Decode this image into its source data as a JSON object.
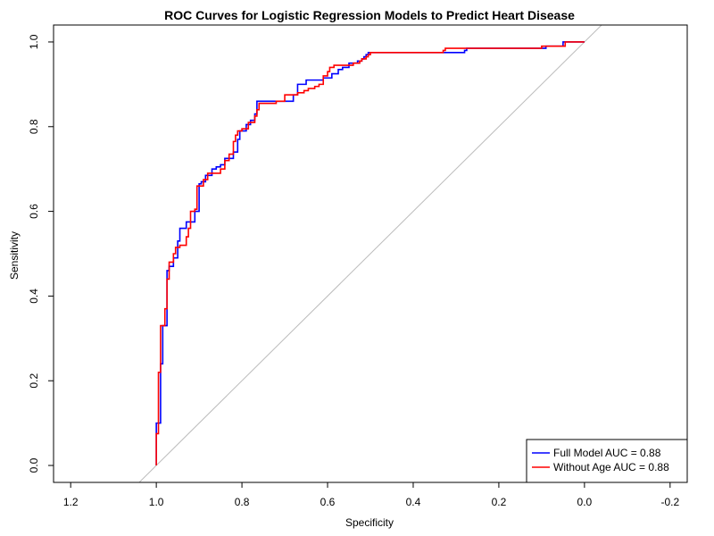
{
  "chart_data": {
    "type": "line",
    "title": "ROC Curves for Logistic Regression Models to Predict Heart Disease",
    "xlabel": "Specificity",
    "ylabel": "Sensitivity",
    "xlim": [
      1.24,
      -0.24
    ],
    "ylim": [
      -0.04,
      1.04
    ],
    "x_reversed": true,
    "x_ticks": [
      1.2,
      1.0,
      0.8,
      0.6,
      0.4,
      0.2,
      0.0,
      -0.2
    ],
    "x_tick_labels": [
      "1.2",
      "1.0",
      "0.8",
      "0.6",
      "0.4",
      "0.2",
      "0.0",
      "-0.2"
    ],
    "y_ticks": [
      0.0,
      0.2,
      0.4,
      0.6,
      0.8,
      1.0
    ],
    "y_tick_labels": [
      "0.0",
      "0.2",
      "0.4",
      "0.6",
      "0.8",
      "1.0"
    ],
    "grid": false,
    "legend_position": "bottom-right",
    "reference_line": {
      "from": [
        1,
        0
      ],
      "to": [
        0,
        1
      ],
      "color": "#bbbbbb"
    },
    "series": [
      {
        "name": "Full Model AUC = 0.88",
        "color": "#0000ff",
        "points": [
          [
            1.0,
            0.0
          ],
          [
            1.0,
            0.1
          ],
          [
            0.99,
            0.1
          ],
          [
            0.99,
            0.24
          ],
          [
            0.985,
            0.24
          ],
          [
            0.985,
            0.33
          ],
          [
            0.975,
            0.33
          ],
          [
            0.975,
            0.46
          ],
          [
            0.97,
            0.46
          ],
          [
            0.97,
            0.47
          ],
          [
            0.96,
            0.47
          ],
          [
            0.96,
            0.49
          ],
          [
            0.95,
            0.49
          ],
          [
            0.95,
            0.53
          ],
          [
            0.945,
            0.53
          ],
          [
            0.945,
            0.56
          ],
          [
            0.93,
            0.56
          ],
          [
            0.93,
            0.575
          ],
          [
            0.91,
            0.575
          ],
          [
            0.91,
            0.6
          ],
          [
            0.9,
            0.6
          ],
          [
            0.9,
            0.665
          ],
          [
            0.895,
            0.665
          ],
          [
            0.895,
            0.67
          ],
          [
            0.885,
            0.67
          ],
          [
            0.885,
            0.685
          ],
          [
            0.87,
            0.685
          ],
          [
            0.87,
            0.7
          ],
          [
            0.86,
            0.7
          ],
          [
            0.86,
            0.705
          ],
          [
            0.85,
            0.705
          ],
          [
            0.85,
            0.71
          ],
          [
            0.84,
            0.71
          ],
          [
            0.84,
            0.725
          ],
          [
            0.82,
            0.725
          ],
          [
            0.82,
            0.74
          ],
          [
            0.81,
            0.74
          ],
          [
            0.81,
            0.77
          ],
          [
            0.805,
            0.77
          ],
          [
            0.805,
            0.79
          ],
          [
            0.79,
            0.79
          ],
          [
            0.79,
            0.805
          ],
          [
            0.78,
            0.805
          ],
          [
            0.78,
            0.815
          ],
          [
            0.77,
            0.815
          ],
          [
            0.77,
            0.83
          ],
          [
            0.765,
            0.83
          ],
          [
            0.765,
            0.86
          ],
          [
            0.68,
            0.86
          ],
          [
            0.68,
            0.875
          ],
          [
            0.67,
            0.875
          ],
          [
            0.67,
            0.9
          ],
          [
            0.65,
            0.9
          ],
          [
            0.65,
            0.91
          ],
          [
            0.61,
            0.91
          ],
          [
            0.61,
            0.915
          ],
          [
            0.59,
            0.915
          ],
          [
            0.59,
            0.925
          ],
          [
            0.575,
            0.925
          ],
          [
            0.575,
            0.935
          ],
          [
            0.565,
            0.935
          ],
          [
            0.565,
            0.94
          ],
          [
            0.55,
            0.94
          ],
          [
            0.55,
            0.95
          ],
          [
            0.53,
            0.95
          ],
          [
            0.53,
            0.955
          ],
          [
            0.52,
            0.955
          ],
          [
            0.52,
            0.96
          ],
          [
            0.515,
            0.96
          ],
          [
            0.515,
            0.965
          ],
          [
            0.51,
            0.965
          ],
          [
            0.51,
            0.97
          ],
          [
            0.505,
            0.97
          ],
          [
            0.505,
            0.975
          ],
          [
            0.28,
            0.975
          ],
          [
            0.28,
            0.98
          ],
          [
            0.275,
            0.98
          ],
          [
            0.275,
            0.985
          ],
          [
            0.09,
            0.985
          ],
          [
            0.09,
            0.99
          ],
          [
            0.05,
            0.99
          ],
          [
            0.05,
            1.0
          ],
          [
            0.0,
            1.0
          ]
        ]
      },
      {
        "name": "Without Age AUC = 0.88",
        "color": "#ff0000",
        "points": [
          [
            1.0,
            0.0
          ],
          [
            1.0,
            0.075
          ],
          [
            0.995,
            0.075
          ],
          [
            0.995,
            0.22
          ],
          [
            0.99,
            0.22
          ],
          [
            0.99,
            0.33
          ],
          [
            0.98,
            0.33
          ],
          [
            0.98,
            0.37
          ],
          [
            0.975,
            0.37
          ],
          [
            0.975,
            0.44
          ],
          [
            0.97,
            0.44
          ],
          [
            0.97,
            0.48
          ],
          [
            0.96,
            0.48
          ],
          [
            0.96,
            0.5
          ],
          [
            0.955,
            0.5
          ],
          [
            0.955,
            0.515
          ],
          [
            0.945,
            0.515
          ],
          [
            0.945,
            0.52
          ],
          [
            0.93,
            0.52
          ],
          [
            0.93,
            0.54
          ],
          [
            0.925,
            0.54
          ],
          [
            0.925,
            0.56
          ],
          [
            0.92,
            0.56
          ],
          [
            0.92,
            0.6
          ],
          [
            0.91,
            0.6
          ],
          [
            0.91,
            0.605
          ],
          [
            0.905,
            0.605
          ],
          [
            0.905,
            0.66
          ],
          [
            0.89,
            0.66
          ],
          [
            0.89,
            0.675
          ],
          [
            0.88,
            0.675
          ],
          [
            0.88,
            0.69
          ],
          [
            0.85,
            0.69
          ],
          [
            0.85,
            0.7
          ],
          [
            0.84,
            0.7
          ],
          [
            0.84,
            0.72
          ],
          [
            0.83,
            0.72
          ],
          [
            0.83,
            0.735
          ],
          [
            0.82,
            0.735
          ],
          [
            0.82,
            0.765
          ],
          [
            0.815,
            0.765
          ],
          [
            0.815,
            0.78
          ],
          [
            0.81,
            0.78
          ],
          [
            0.81,
            0.79
          ],
          [
            0.8,
            0.79
          ],
          [
            0.8,
            0.795
          ],
          [
            0.785,
            0.795
          ],
          [
            0.785,
            0.81
          ],
          [
            0.77,
            0.81
          ],
          [
            0.77,
            0.825
          ],
          [
            0.765,
            0.825
          ],
          [
            0.765,
            0.84
          ],
          [
            0.76,
            0.84
          ],
          [
            0.76,
            0.855
          ],
          [
            0.72,
            0.855
          ],
          [
            0.72,
            0.86
          ],
          [
            0.7,
            0.86
          ],
          [
            0.7,
            0.875
          ],
          [
            0.67,
            0.875
          ],
          [
            0.67,
            0.88
          ],
          [
            0.655,
            0.88
          ],
          [
            0.655,
            0.885
          ],
          [
            0.645,
            0.885
          ],
          [
            0.645,
            0.89
          ],
          [
            0.63,
            0.89
          ],
          [
            0.63,
            0.895
          ],
          [
            0.62,
            0.895
          ],
          [
            0.62,
            0.9
          ],
          [
            0.61,
            0.9
          ],
          [
            0.61,
            0.92
          ],
          [
            0.6,
            0.92
          ],
          [
            0.6,
            0.93
          ],
          [
            0.595,
            0.93
          ],
          [
            0.595,
            0.94
          ],
          [
            0.585,
            0.94
          ],
          [
            0.585,
            0.945
          ],
          [
            0.54,
            0.945
          ],
          [
            0.54,
            0.95
          ],
          [
            0.525,
            0.95
          ],
          [
            0.525,
            0.955
          ],
          [
            0.52,
            0.955
          ],
          [
            0.52,
            0.96
          ],
          [
            0.51,
            0.96
          ],
          [
            0.51,
            0.965
          ],
          [
            0.505,
            0.965
          ],
          [
            0.505,
            0.97
          ],
          [
            0.5,
            0.97
          ],
          [
            0.5,
            0.975
          ],
          [
            0.33,
            0.975
          ],
          [
            0.33,
            0.98
          ],
          [
            0.325,
            0.98
          ],
          [
            0.325,
            0.985
          ],
          [
            0.1,
            0.985
          ],
          [
            0.1,
            0.99
          ],
          [
            0.045,
            0.99
          ],
          [
            0.045,
            1.0
          ],
          [
            0.0,
            1.0
          ]
        ]
      }
    ]
  }
}
